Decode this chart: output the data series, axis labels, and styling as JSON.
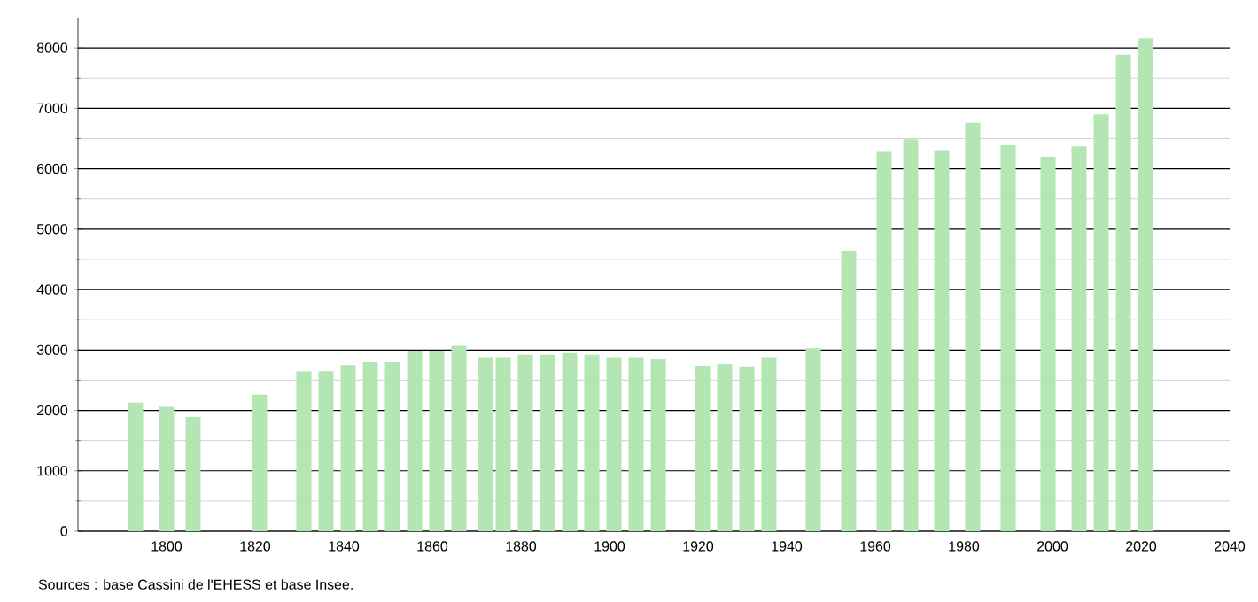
{
  "chart_data": {
    "type": "bar",
    "x": [
      1793,
      1800,
      1806,
      1821,
      1831,
      1836,
      1841,
      1846,
      1851,
      1856,
      1861,
      1866,
      1872,
      1876,
      1881,
      1886,
      1891,
      1896,
      1901,
      1906,
      1911,
      1921,
      1926,
      1931,
      1936,
      1946,
      1954,
      1962,
      1968,
      1975,
      1982,
      1990,
      1999,
      2006,
      2011,
      2016,
      2021
    ],
    "values": [
      2130,
      2060,
      1890,
      2260,
      2650,
      2650,
      2750,
      2800,
      2800,
      2990,
      2990,
      3070,
      2880,
      2880,
      2920,
      2920,
      2950,
      2920,
      2880,
      2880,
      2850,
      2740,
      2770,
      2730,
      2880,
      3030,
      4640,
      6280,
      6490,
      6310,
      6760,
      6390,
      6200,
      6370,
      6900,
      7890,
      8160
    ],
    "color": "#b3e6b3",
    "xlim": [
      1780,
      2040
    ],
    "xticks": [
      1800,
      1820,
      1840,
      1860,
      1880,
      1900,
      1920,
      1940,
      1960,
      1980,
      2000,
      2020,
      2040
    ],
    "ylim": [
      0,
      8500
    ],
    "yticks": [
      0,
      1000,
      2000,
      3000,
      4000,
      5000,
      6000,
      7000,
      8000
    ],
    "grid": "y",
    "annotations": [
      "Sources : base Cassini de l'EHESS et base Insee."
    ]
  }
}
